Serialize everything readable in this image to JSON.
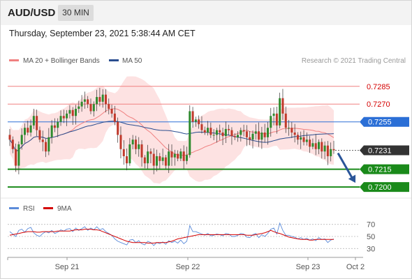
{
  "header": {
    "pair": "AUD/USD",
    "timeframe": "30 MIN"
  },
  "datetime": "Thursday, September 23, 2021 5:38:44 AM CET",
  "legend": {
    "ma20": "MA 20 + Bollinger Bands",
    "ma50": "MA 50",
    "rsi": "RSI",
    "rsi_ma": "9MA"
  },
  "credit": "Research © 2021 Trading Central",
  "colors": {
    "ma20": "#f08080",
    "ma50": "#2a4d8f",
    "bands": "#fde2e2",
    "resistance": "#f08080",
    "resistance_text": "#d40000",
    "blue_level": "#2b6fd6",
    "current": "#333333",
    "support": "#1a8a1a",
    "candle_up": "#2e8b2e",
    "candle_down": "#c0392b",
    "rsi": "#5b8bd9",
    "rsi_ma": "#d40000",
    "arrow": "#2a5599"
  },
  "chart_data": [
    {
      "type": "candlestick",
      "x_labels": [
        "Sep 21",
        "Sep 22",
        "Sep 23",
        "Oct 2"
      ],
      "ylim": [
        0.7193,
        0.7299
      ],
      "levels": [
        {
          "label": "0.7285",
          "value": 0.7285,
          "kind": "resistance"
        },
        {
          "label": "0.7270",
          "value": 0.727,
          "kind": "resistance"
        },
        {
          "label": "0.7255",
          "value": 0.7255,
          "kind": "ma"
        },
        {
          "label": "0.7231",
          "value": 0.7231,
          "kind": "current"
        },
        {
          "label": "0.7215",
          "value": 0.7215,
          "kind": "support"
        },
        {
          "label": "0.7200",
          "value": 0.72,
          "kind": "support"
        }
      ],
      "forecast": {
        "from": 0.7231,
        "to": 0.72,
        "direction": "down"
      },
      "close": [
        0.724,
        0.7232,
        0.7218,
        0.7236,
        0.7244,
        0.725,
        0.7246,
        0.7252,
        0.726,
        0.7248,
        0.724,
        0.7238,
        0.723,
        0.7242,
        0.7252,
        0.725,
        0.7255,
        0.726,
        0.7258,
        0.7262,
        0.7265,
        0.726,
        0.7266,
        0.7268,
        0.7272,
        0.7274,
        0.727,
        0.7264,
        0.727,
        0.7276,
        0.7272,
        0.7278,
        0.727,
        0.7266,
        0.7262,
        0.7255,
        0.7244,
        0.7232,
        0.7226,
        0.722,
        0.7236,
        0.724,
        0.7232,
        0.7236,
        0.7225,
        0.722,
        0.723,
        0.7228,
        0.7218,
        0.7226,
        0.7222,
        0.7225,
        0.7218,
        0.723,
        0.7225,
        0.7228,
        0.7224,
        0.723,
        0.7222,
        0.7227,
        0.7264,
        0.7255,
        0.7257,
        0.7253,
        0.7248,
        0.7246,
        0.725,
        0.7244,
        0.7244,
        0.7248,
        0.7246,
        0.7243,
        0.7249,
        0.7248,
        0.7243,
        0.7242,
        0.7244,
        0.7248,
        0.7247,
        0.7242,
        0.724,
        0.7245,
        0.7247,
        0.724,
        0.7246,
        0.7242,
        0.725,
        0.726,
        0.7262,
        0.7252,
        0.7275,
        0.7262,
        0.725,
        0.725,
        0.7246,
        0.7244,
        0.724,
        0.7242,
        0.7238,
        0.724,
        0.7234,
        0.7237,
        0.7232,
        0.7238,
        0.723,
        0.7235,
        0.7226,
        0.7232,
        0.7231
      ],
      "rsi": {
        "yticks": [
          70,
          50,
          30
        ],
        "ylim": [
          20,
          80
        ],
        "values": [
          58,
          54,
          50,
          60,
          62,
          57,
          63,
          65,
          56,
          52,
          50,
          55,
          58,
          56,
          60,
          55,
          57,
          61,
          59,
          62,
          63,
          58,
          64,
          60,
          63,
          66,
          60,
          64,
          61,
          66,
          61,
          63,
          58,
          55,
          52,
          46,
          42,
          40,
          38,
          36,
          44,
          45,
          40,
          43,
          38,
          36,
          42,
          40,
          35,
          40,
          38,
          41,
          37,
          43,
          40,
          42,
          39,
          44,
          38,
          42,
          68,
          58,
          58,
          56,
          54,
          52,
          55,
          51,
          52,
          54,
          53,
          51,
          55,
          54,
          50,
          50,
          52,
          55,
          54,
          49,
          48,
          53,
          55,
          48,
          53,
          50,
          55,
          62,
          64,
          54,
          72,
          60,
          52,
          52,
          50,
          49,
          46,
          48,
          45,
          47,
          44,
          46,
          43,
          48,
          45,
          46,
          40,
          44,
          46
        ],
        "ma": [
          52,
          53,
          54,
          55,
          56,
          57,
          58,
          58,
          58,
          57,
          57,
          58,
          58,
          58,
          58,
          58,
          59,
          59,
          59,
          59,
          59,
          60,
          61,
          61,
          61,
          62,
          62,
          62,
          61,
          61,
          60,
          58,
          56,
          54,
          52,
          50,
          48,
          46,
          44,
          42,
          41,
          40,
          40,
          40,
          40,
          40,
          39,
          39,
          39,
          40,
          40,
          40,
          40,
          41,
          42,
          44,
          46,
          47,
          48,
          49,
          50,
          51,
          52,
          53,
          53,
          53,
          53,
          53,
          53,
          53,
          53,
          53,
          53,
          53,
          53,
          53,
          53,
          53,
          53,
          52,
          52,
          52,
          53,
          54,
          55,
          56,
          58,
          60,
          58,
          56,
          55,
          53,
          51,
          49,
          48,
          47,
          46,
          45,
          45,
          45,
          44,
          44,
          45,
          45,
          45,
          45,
          45,
          45,
          45
        ]
      }
    }
  ]
}
